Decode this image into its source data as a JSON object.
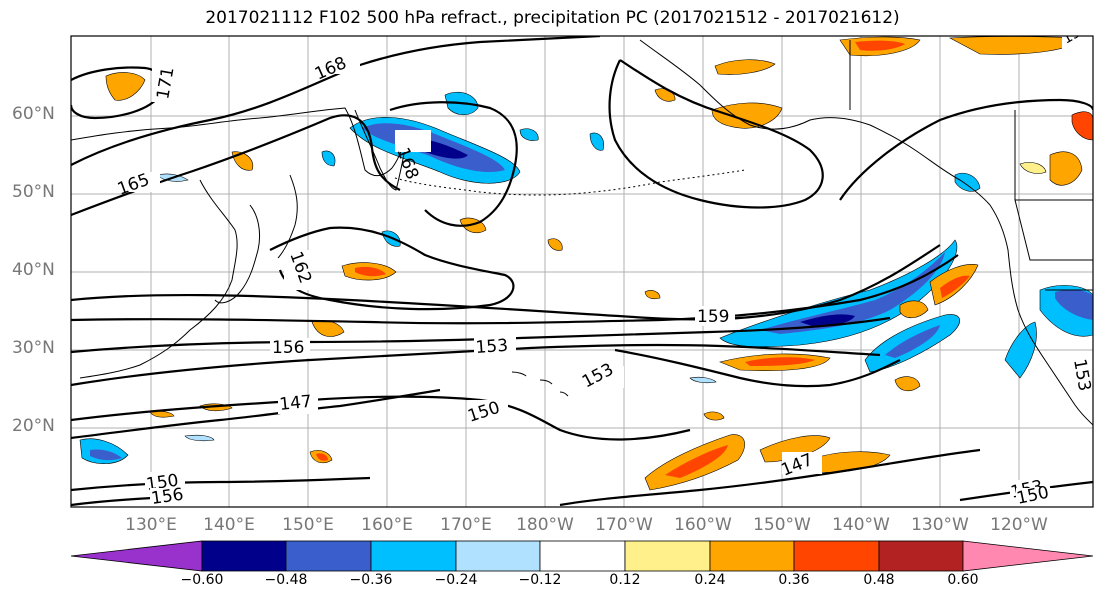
{
  "title": "2017021112 F102 500 hPa refract., precipitation PC (2017021512 - 2017021612)",
  "lat_labels": [
    "60°N",
    "50°N",
    "40°N",
    "30°N",
    "20°N"
  ],
  "lon_labels": [
    "130°E",
    "140°E",
    "150°E",
    "160°E",
    "170°E",
    "180°W",
    "170°W",
    "160°W",
    "150°W",
    "140°W",
    "130°W",
    "120°W"
  ],
  "contour_labels": [
    "171",
    "168",
    "165",
    "168",
    "162",
    "159",
    "156",
    "153",
    "153",
    "153",
    "150",
    "147",
    "147",
    "150",
    "153",
    "156",
    "150",
    "153"
  ],
  "colorbar": {
    "ticks": [
      "−0.60",
      "−0.48",
      "−0.36",
      "−0.24",
      "−0.12",
      "0.12",
      "0.24",
      "0.36",
      "0.48",
      "0.60"
    ],
    "colors": [
      "#9932cc",
      "#00008b",
      "#3a5fcd",
      "#00bfff",
      "#b0e2ff",
      "#ffffff",
      "#fff08c",
      "#ffa500",
      "#ff4500",
      "#b22222",
      "#ff88b0"
    ]
  },
  "colors": {
    "c_n060": "#00008b",
    "c_n048": "#3a5fcd",
    "c_n036": "#00bfff",
    "c_n024": "#b0e2ff",
    "c_p012": "#fff08c",
    "c_p024": "#ffa500",
    "c_p036": "#ff4500",
    "c_p048": "#b22222"
  }
}
